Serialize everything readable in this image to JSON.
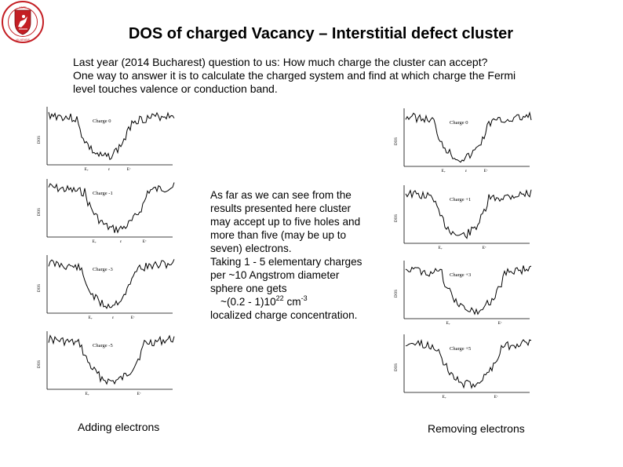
{
  "logo": {
    "year": "1579",
    "ring_text": "VILNIAUS UNIVERSITETAS · UNIVERSITAS VILNENSIS",
    "colors": {
      "shield": "#c41e24",
      "ring": "#c41e24",
      "knight": "#ffffff"
    }
  },
  "title": "DOS of charged Vacancy – Interstitial defect cluster",
  "intro": [
    "Last year  (2014 Bucharest) question to us: How much charge the cluster can accept?",
    "One way to answer it is to calculate the charged system and find at which charge the Fermi",
    "level touches valence or conduction band."
  ],
  "description": [
    "As far as we can see from the",
    "results presented here cluster",
    "may accept up to five holes and",
    "more than five (may be up to",
    "seven) electrons.",
    "Taking 1 - 5 elementary charges",
    "per ~10 Angstrom diameter",
    "sphere one gets"
  ],
  "concentration": {
    "prefix": "~(0.2 - 1)10",
    "exp1": "22",
    "unit": " cm",
    "exp2": "-3"
  },
  "description_end": "localized charge concentration.",
  "captions": {
    "left": "Adding electrons",
    "right": "Removing electrons"
  },
  "panels": {
    "left": [
      {
        "label": "Charge 0",
        "ylabel": "DOS",
        "band_labels": [
          "Eᵥ",
          "ε",
          "Eᶜ"
        ]
      },
      {
        "label": "Charge -1",
        "ylabel": "DOS",
        "band_labels": [
          "Eᵥ",
          "ε",
          "Eᶜ"
        ]
      },
      {
        "label": "Charge -3",
        "ylabel": "DOS",
        "band_labels": [
          "Eᵥ",
          "ε",
          "Eᶜ"
        ]
      },
      {
        "label": "Charge -5",
        "ylabel": "DOS",
        "band_labels": [
          "Eᵥ",
          "Eᶜ"
        ]
      }
    ],
    "right": [
      {
        "label": "Charge 0",
        "ylabel": "DOS",
        "band_labels": [
          "Eᵥ",
          "ε",
          "Eᶜ"
        ]
      },
      {
        "label": "Charge +1",
        "ylabel": "DOS",
        "band_labels": [
          "Eᵥ",
          "Eᶜ"
        ]
      },
      {
        "label": "Charge +3",
        "ylabel": "DOS",
        "band_labels": [
          "Eᵥ",
          "Eᶜ"
        ]
      },
      {
        "label": "Charge +5",
        "ylabel": "DOS",
        "band_labels": [
          "Eᵥ",
          "Eᶜ"
        ]
      }
    ]
  }
}
